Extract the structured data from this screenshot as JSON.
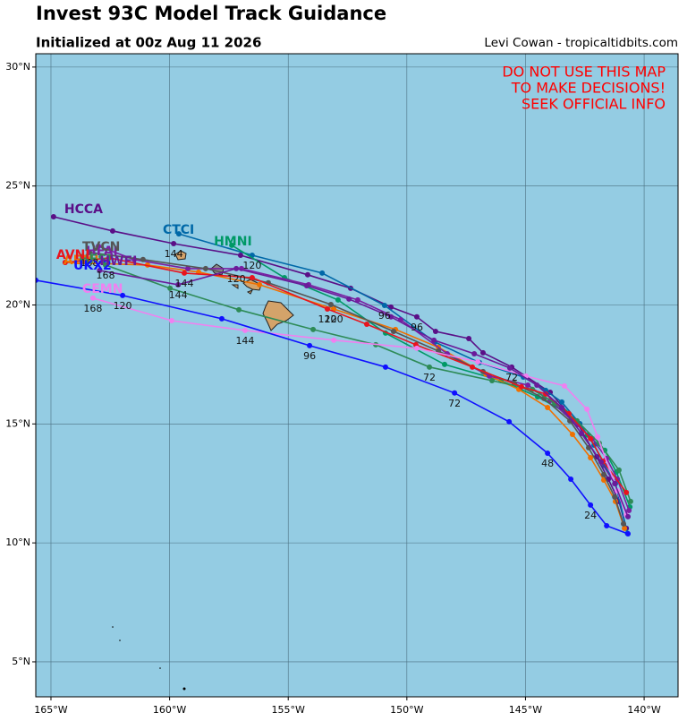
{
  "chart_data": {
    "type": "map_tracks",
    "title": "Invest 93C Model Track Guidance",
    "subtitle": "Initialized at 00z Aug 11 2026",
    "credit": "Levi Cowan - tropicaltidbits.com",
    "warning": [
      "DO NOT USE THIS MAP",
      "TO MAKE DECISIONS!",
      "SEEK OFFICIAL INFO"
    ],
    "xlim": [
      -165.64,
      -138.57
    ],
    "ylim": [
      3.53,
      30.56
    ],
    "xticks": [
      {
        "value": -165,
        "label": "165°W"
      },
      {
        "value": -160,
        "label": "160°W"
      },
      {
        "value": -155,
        "label": "155°W"
      },
      {
        "value": -150,
        "label": "150°W"
      },
      {
        "value": -145,
        "label": "145°W"
      },
      {
        "value": -140,
        "label": "140°W"
      }
    ],
    "yticks": [
      {
        "value": 5,
        "label": "5°N"
      },
      {
        "value": 10,
        "label": "10°N"
      },
      {
        "value": 15,
        "label": "15°N"
      },
      {
        "value": 20,
        "label": "20°N"
      },
      {
        "value": 25,
        "label": "25°N"
      },
      {
        "value": 30,
        "label": "30°N"
      }
    ],
    "grid": true,
    "series": [
      {
        "name": "HCCA",
        "color": "#5a0f87",
        "x": [
          -140.75,
          -141.06,
          -141.51,
          -142.0,
          -142.79,
          -143.96,
          -145.58,
          -146.79,
          -147.39,
          -148.79,
          -149.58,
          -150.67,
          -152.37,
          -154.18,
          -157.01,
          -159.83,
          -162.4,
          -164.89
        ],
        "values": [
          10.61,
          11.74,
          12.68,
          13.62,
          14.98,
          16.33,
          17.39,
          17.99,
          18.59,
          18.89,
          19.5,
          19.91,
          20.7,
          21.27,
          22.09,
          22.58,
          23.11,
          23.71
        ],
        "point_labels": [
          null,
          null,
          null,
          null,
          null,
          null,
          "72",
          null,
          null,
          null,
          "96",
          null,
          null,
          null,
          null,
          "144",
          null,
          null
        ]
      },
      {
        "name": "CTCI",
        "color": "#0068a8",
        "x": [
          -140.7,
          -141.21,
          -141.66,
          -142.11,
          -142.71,
          -143.47,
          -144.15,
          -145.09,
          -146.94,
          -148.82,
          -150.94,
          -153.57,
          -156.52,
          -159.61
        ],
        "values": [
          10.4,
          12.49,
          13.25,
          14.11,
          15.01,
          15.92,
          16.41,
          16.97,
          17.58,
          18.44,
          19.98,
          21.34,
          22.09,
          22.99
        ],
        "point_labels": [
          null,
          null,
          null,
          null,
          null,
          null,
          null,
          null,
          null,
          null,
          "96",
          null,
          "120",
          null
        ]
      },
      {
        "name": "HMNI",
        "color": "#009966",
        "x": [
          -140.6,
          -141.17,
          -141.66,
          -142.38,
          -143.32,
          -144.49,
          -146.03,
          -148.41,
          -150.9,
          -152.9,
          -155.16,
          -157.38
        ],
        "values": [
          11.51,
          12.98,
          13.89,
          14.53,
          15.5,
          16.14,
          16.82,
          17.5,
          18.82,
          20.21,
          21.15,
          22.51
        ],
        "point_labels": [
          null,
          null,
          null,
          null,
          null,
          null,
          null,
          null,
          null,
          null,
          null,
          null
        ]
      },
      {
        "name": "AEMI",
        "color": "#f07000",
        "x": [
          -140.83,
          -141.21,
          -141.7,
          -142.26,
          -143.02,
          -144.07,
          -145.28,
          -146.67,
          -148.67,
          -150.48,
          -153.08,
          -156.21,
          -158.78,
          -160.93,
          -164.4
        ],
        "values": [
          10.61,
          11.74,
          12.64,
          13.58,
          14.56,
          15.69,
          16.45,
          17.09,
          18.22,
          18.97,
          19.83,
          20.85,
          21.38,
          21.68,
          21.79
        ],
        "point_labels": [
          null,
          null,
          null,
          null,
          null,
          null,
          null,
          null,
          null,
          null,
          "120",
          null,
          null,
          null,
          null
        ]
      },
      {
        "name": "HFAI",
        "color": "#7a1fa2",
        "x": [
          -140.64,
          -141.13,
          -141.58,
          -142.19,
          -143.02,
          -143.96,
          -144.9,
          -146.52,
          -148.3,
          -150.26,
          -152.07,
          -154.14,
          -156.97,
          -159.23,
          -161.49,
          -163.0
        ],
        "values": [
          11.36,
          12.68,
          13.55,
          14.38,
          15.13,
          15.99,
          16.63,
          17.01,
          17.95,
          19.38,
          20.21,
          20.85,
          21.53,
          21.53,
          21.91,
          22.47
        ],
        "point_labels": [
          null,
          null,
          null,
          null,
          null,
          null,
          null,
          null,
          null,
          null,
          null,
          null,
          null,
          null,
          null,
          null
        ]
      },
      {
        "name": "TVCN",
        "color": "#555555",
        "x": [
          -140.87,
          -141.24,
          -141.7,
          -142.34,
          -143.13,
          -144.22,
          -145.47,
          -146.79,
          -148.67,
          -150.56,
          -153.2,
          -155.84,
          -158.48,
          -161.12,
          -163.38
        ],
        "values": [
          10.8,
          11.93,
          12.87,
          14.0,
          15.13,
          16.07,
          16.71,
          17.2,
          18.06,
          18.89,
          20.02,
          20.93,
          21.53,
          21.91,
          22.21
        ],
        "point_labels": [
          null,
          null,
          null,
          null,
          null,
          null,
          null,
          null,
          null,
          null,
          null,
          null,
          null,
          null,
          "168"
        ]
      },
      {
        "name": "HFSI",
        "color": "#2e8b57",
        "x": [
          -140.57,
          -141.06,
          -141.89,
          -142.83,
          -143.77,
          -144.71,
          -146.41,
          -149.05,
          -151.31,
          -153.95,
          -157.08,
          -159.98,
          -162.7
        ],
        "values": [
          11.74,
          13.06,
          14.19,
          15.13,
          15.88,
          16.45,
          16.82,
          17.39,
          18.33,
          18.97,
          19.8,
          20.7,
          21.68
        ],
        "point_labels": [
          null,
          null,
          null,
          null,
          null,
          null,
          null,
          "72",
          null,
          null,
          null,
          null,
          "168"
        ]
      },
      {
        "name": "AVNI",
        "color": "#e8141e",
        "x": [
          -140.75,
          -141.73,
          -142.26,
          -143.17,
          -144.15,
          -145.17,
          -147.24,
          -149.62,
          -151.69,
          -153.35,
          -156.52,
          -159.38,
          -162.55,
          -164.4
        ],
        "values": [
          12.12,
          13.43,
          14.38,
          15.43,
          16.26,
          16.56,
          17.39,
          18.33,
          19.19,
          19.83,
          21.15,
          21.34,
          21.98,
          21.79
        ],
        "point_labels": [
          null,
          null,
          null,
          null,
          null,
          null,
          null,
          null,
          null,
          "120",
          null,
          "144",
          null,
          null
        ]
      },
      {
        "name": "CEMN",
        "color": "#f080f0",
        "x": [
          -140.75,
          -141.13,
          -141.96,
          -142.41,
          -143.36,
          -144.98,
          -147.01,
          -149.58,
          -153.08,
          -156.82,
          -159.91,
          -163.23
        ],
        "values": [
          11.17,
          12.19,
          14.45,
          15.62,
          16.6,
          17.01,
          17.61,
          18.18,
          18.52,
          18.93,
          19.34,
          20.29
        ],
        "point_labels": [
          null,
          null,
          null,
          null,
          null,
          null,
          null,
          null,
          null,
          "144",
          null,
          "168"
        ]
      },
      {
        "name": "UKX2",
        "color": "#1010ff",
        "x": [
          -140.68,
          -141.58,
          -142.26,
          -143.09,
          -144.07,
          -145.69,
          -147.99,
          -150.9,
          -154.1,
          -157.8,
          -161.98,
          -165.64
        ],
        "values": [
          10.38,
          10.72,
          11.59,
          12.68,
          13.77,
          15.09,
          16.3,
          17.39,
          18.29,
          19.42,
          20.4,
          21.04
        ],
        "point_labels": [
          null,
          null,
          "24",
          null,
          "48",
          null,
          "72",
          null,
          "96",
          null,
          "120",
          null
        ]
      },
      {
        "name": "HWFI",
        "color": "#6a1b9a",
        "x": [
          -140.68,
          -141.24,
          -141.81,
          -142.64,
          -143.47,
          -144.52,
          -145.66,
          -147.16,
          -148.86,
          -150.67,
          -152.44,
          -154.22,
          -157.19,
          -159.64,
          -162.95
        ],
        "values": [
          11.1,
          12.49,
          13.4,
          14.6,
          15.69,
          16.63,
          17.35,
          17.95,
          18.52,
          19.5,
          20.25,
          20.81,
          21.53,
          20.85,
          21.45
        ],
        "point_labels": [
          null,
          null,
          null,
          null,
          null,
          null,
          null,
          null,
          null,
          null,
          null,
          null,
          "120",
          "144",
          null
        ]
      }
    ]
  }
}
